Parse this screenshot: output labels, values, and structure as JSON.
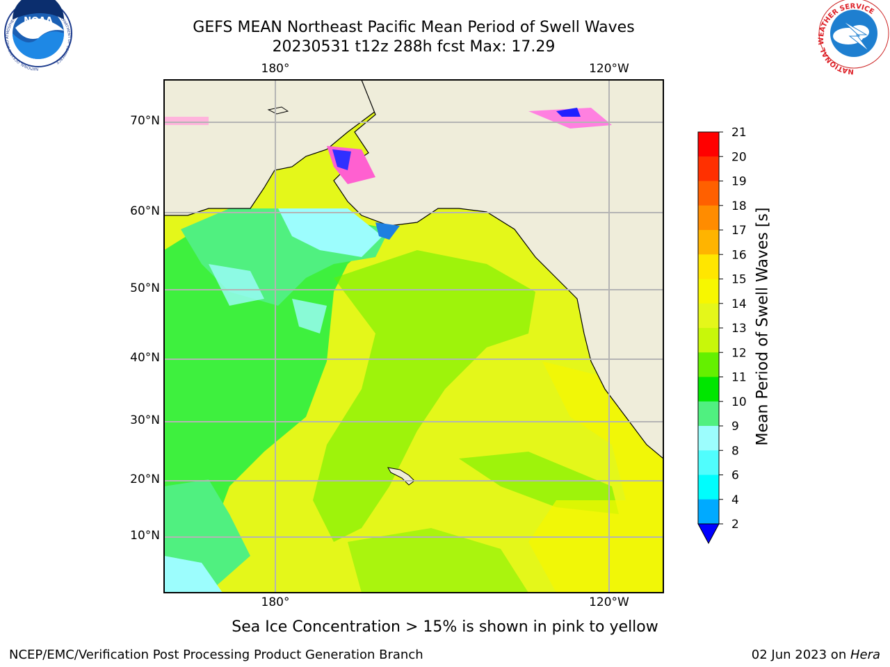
{
  "header": {
    "title_line1": "GEFS MEAN Northeast Pacific Mean Period of Swell Waves",
    "title_line2": "20230531 t12z 288h fcst   Max: 17.29"
  },
  "logos": {
    "noaa_text": "NOAA",
    "noaa_ring": "NATIONAL OCEANIC AND ATMOSPHERIC ADMINISTRATION · U.S. DEPARTMENT OF COMMERCE",
    "nws_ring": "NATIONAL WEATHER SERVICE"
  },
  "map": {
    "lon_labels_top": [
      "180°",
      "120°W"
    ],
    "lon_labels_bottom": [
      "180°",
      "120°W"
    ],
    "lat_labels": [
      "70°N",
      "60°N",
      "50°N",
      "40°N",
      "30°N",
      "20°N",
      "10°N"
    ],
    "colors": {
      "land": "#efedda",
      "ocean_green": "#3ef03e",
      "ocean_yellow": "#e4f71a",
      "ocean_cyan": "#9cfdfd",
      "grid": "#b4b4b4"
    }
  },
  "colorbar": {
    "label": "Mean Period of Swell Waves [s]",
    "ticks": [
      "21",
      "20",
      "19",
      "18",
      "17",
      "16",
      "15",
      "14",
      "13",
      "12",
      "11",
      "10",
      "9",
      "8",
      "6",
      "4",
      "2"
    ],
    "colors": [
      "#ff0000",
      "#ff3000",
      "#ff6000",
      "#ff8c00",
      "#ffb400",
      "#ffe600",
      "#f7f700",
      "#e4f71a",
      "#c8f70a",
      "#64f000",
      "#00e600",
      "#50f080",
      "#9cfdfd",
      "#50fdfd",
      "#00fdfd",
      "#00aaff",
      "#0070ff"
    ],
    "extend_color": "#0000ff"
  },
  "caption": "Sea Ice Concentration > 15% is shown in pink to yellow",
  "footer": {
    "left": "NCEP/EMC/Verification Post Processing Product Generation Branch",
    "right_date": "02 Jun 2023 on ",
    "right_host": "Hera"
  }
}
